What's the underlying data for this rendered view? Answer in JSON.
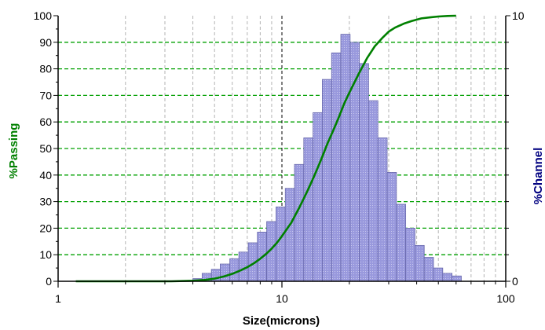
{
  "chart_data": {
    "type": "bar+line",
    "xscale": "log",
    "xlim": [
      1,
      100
    ],
    "ylim_left": [
      0,
      100
    ],
    "ylim_right": [
      0,
      10
    ],
    "xlabel": "Size(microns)",
    "ylabel_left": "%Passing",
    "ylabel_right": "%Channel",
    "x_ticks": [
      "1",
      "10",
      "100"
    ],
    "y_left_ticks": [
      "0",
      "10",
      "20",
      "30",
      "40",
      "50",
      "60",
      "70",
      "80",
      "90",
      "100"
    ],
    "y_right_ticks": [
      "0",
      "10"
    ],
    "grid": {
      "horizontal": "dashed-green",
      "vertical": "dashed-gray",
      "marker_line_x": 10
    },
    "colors": {
      "passing": "#008000",
      "channel_fill": "#9999dd",
      "channel_stroke": "#6666aa",
      "hgrid": "#00a000",
      "vgrid": "#b4b4b4",
      "marker": "#000000",
      "right_title": "#000080"
    },
    "series": [
      {
        "name": "%Channel",
        "kind": "bar",
        "axis": "right",
        "bins": [
          {
            "x0": 4.0,
            "x1": 4.4,
            "y": 0.1
          },
          {
            "x0": 4.4,
            "x1": 4.84,
            "y": 0.3
          },
          {
            "x0": 4.84,
            "x1": 5.3,
            "y": 0.45
          },
          {
            "x0": 5.3,
            "x1": 5.85,
            "y": 0.65
          },
          {
            "x0": 5.85,
            "x1": 6.42,
            "y": 0.85
          },
          {
            "x0": 6.42,
            "x1": 7.07,
            "y": 1.1
          },
          {
            "x0": 7.07,
            "x1": 7.77,
            "y": 1.45
          },
          {
            "x0": 7.77,
            "x1": 8.55,
            "y": 1.85
          },
          {
            "x0": 8.55,
            "x1": 9.41,
            "y": 2.25
          },
          {
            "x0": 9.41,
            "x1": 10.35,
            "y": 2.8
          },
          {
            "x0": 10.35,
            "x1": 11.38,
            "y": 3.5
          },
          {
            "x0": 11.38,
            "x1": 12.52,
            "y": 4.4
          },
          {
            "x0": 12.52,
            "x1": 13.77,
            "y": 5.4
          },
          {
            "x0": 13.77,
            "x1": 15.15,
            "y": 6.35
          },
          {
            "x0": 15.15,
            "x1": 16.67,
            "y": 7.6
          },
          {
            "x0": 16.67,
            "x1": 18.33,
            "y": 8.6
          },
          {
            "x0": 18.33,
            "x1": 20.17,
            "y": 9.3
          },
          {
            "x0": 20.17,
            "x1": 22.18,
            "y": 9.0
          },
          {
            "x0": 22.18,
            "x1": 24.4,
            "y": 8.2
          },
          {
            "x0": 24.4,
            "x1": 26.84,
            "y": 6.8
          },
          {
            "x0": 26.84,
            "x1": 29.53,
            "y": 5.4
          },
          {
            "x0": 29.53,
            "x1": 32.48,
            "y": 4.1
          },
          {
            "x0": 32.48,
            "x1": 35.73,
            "y": 2.9
          },
          {
            "x0": 35.73,
            "x1": 39.3,
            "y": 2.0
          },
          {
            "x0": 39.3,
            "x1": 43.23,
            "y": 1.35
          },
          {
            "x0": 43.23,
            "x1": 47.56,
            "y": 0.9
          },
          {
            "x0": 47.56,
            "x1": 52.31,
            "y": 0.5
          },
          {
            "x0": 52.31,
            "x1": 57.54,
            "y": 0.3
          },
          {
            "x0": 57.54,
            "x1": 63.3,
            "y": 0.2
          }
        ]
      },
      {
        "name": "%Passing",
        "kind": "line",
        "axis": "left",
        "x": [
          1.2,
          3.2,
          4.0,
          4.5,
          5.0,
          5.5,
          6.0,
          6.5,
          7.0,
          7.5,
          8.0,
          8.5,
          9.0,
          9.5,
          10,
          11,
          12,
          13,
          14,
          15,
          16,
          17,
          18,
          19,
          20,
          22,
          24,
          26,
          28,
          30,
          32,
          35,
          38,
          42,
          46,
          50,
          55,
          60
        ],
        "y": [
          0,
          0,
          0.2,
          0.5,
          1.0,
          1.8,
          2.8,
          4.0,
          5.3,
          6.8,
          8.5,
          10.3,
          12.3,
          14.5,
          17,
          22,
          28,
          34,
          40,
          46,
          52,
          57,
          62,
          67,
          71,
          78,
          84,
          88.5,
          91.5,
          94,
          95.5,
          97,
          98,
          99,
          99.4,
          99.7,
          99.9,
          100
        ]
      }
    ]
  }
}
